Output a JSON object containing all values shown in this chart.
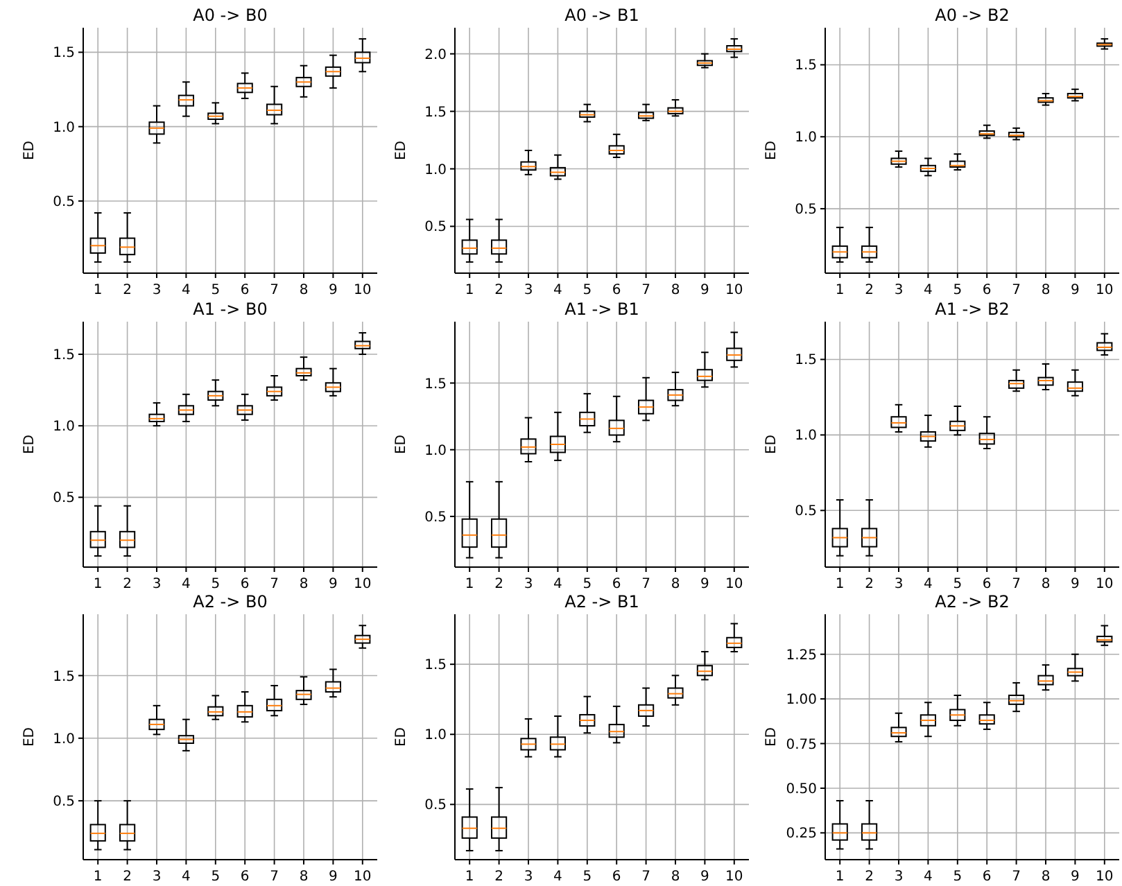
{
  "chart_data": [
    {
      "type": "box",
      "title": "A0 -> B0",
      "ylabel": "ED",
      "categories": [
        "1",
        "2",
        "3",
        "4",
        "5",
        "6",
        "7",
        "8",
        "9",
        "10"
      ],
      "ylim": [
        0.015,
        1.665
      ],
      "yticks": [
        {
          "value": 0.5,
          "label": "0.5"
        },
        {
          "value": 1,
          "label": "1.0"
        },
        {
          "value": 1.5,
          "label": "1.5"
        }
      ],
      "grid": true,
      "series": [
        {
          "color": "#000000",
          "boxes": [
            {
              "low": 0.09,
              "q1": 0.15,
              "median": 0.2,
              "q3": 0.25,
              "high": 0.42
            },
            {
              "low": 0.09,
              "q1": 0.14,
              "median": 0.19,
              "q3": 0.25,
              "high": 0.42
            },
            {
              "low": 0.89,
              "q1": 0.95,
              "median": 0.99,
              "q3": 1.03,
              "high": 1.14
            },
            {
              "low": 1.07,
              "q1": 1.14,
              "median": 1.18,
              "q3": 1.21,
              "high": 1.3
            },
            {
              "low": 1.02,
              "q1": 1.05,
              "median": 1.07,
              "q3": 1.09,
              "high": 1.16
            },
            {
              "low": 1.19,
              "q1": 1.23,
              "median": 1.26,
              "q3": 1.29,
              "high": 1.36
            },
            {
              "low": 1.02,
              "q1": 1.08,
              "median": 1.11,
              "q3": 1.15,
              "high": 1.27
            },
            {
              "low": 1.2,
              "q1": 1.27,
              "median": 1.3,
              "q3": 1.33,
              "high": 1.41
            },
            {
              "low": 1.26,
              "q1": 1.34,
              "median": 1.37,
              "q3": 1.4,
              "high": 1.48
            },
            {
              "low": 1.37,
              "q1": 1.43,
              "median": 1.46,
              "q3": 1.5,
              "high": 1.59
            }
          ]
        }
      ]
    },
    {
      "type": "box",
      "title": "A0 -> B1",
      "ylabel": "ED",
      "categories": [
        "1",
        "2",
        "3",
        "4",
        "5",
        "6",
        "7",
        "8",
        "9",
        "10"
      ],
      "ylim": [
        0.093,
        2.227
      ],
      "yticks": [
        {
          "value": 0.5,
          "label": "0.5"
        },
        {
          "value": 1,
          "label": "1.0"
        },
        {
          "value": 1.5,
          "label": "1.5"
        },
        {
          "value": 2,
          "label": "2.0"
        }
      ],
      "grid": true,
      "series": [
        {
          "color": "#000000",
          "boxes": [
            {
              "low": 0.19,
              "q1": 0.26,
              "median": 0.31,
              "q3": 0.38,
              "high": 0.56
            },
            {
              "low": 0.19,
              "q1": 0.26,
              "median": 0.31,
              "q3": 0.38,
              "high": 0.56
            },
            {
              "low": 0.95,
              "q1": 0.99,
              "median": 1.02,
              "q3": 1.06,
              "high": 1.16
            },
            {
              "low": 0.91,
              "q1": 0.94,
              "median": 0.97,
              "q3": 1.01,
              "high": 1.12
            },
            {
              "low": 1.41,
              "q1": 1.45,
              "median": 1.47,
              "q3": 1.5,
              "high": 1.56
            },
            {
              "low": 1.1,
              "q1": 1.13,
              "median": 1.16,
              "q3": 1.2,
              "high": 1.3
            },
            {
              "low": 1.42,
              "q1": 1.44,
              "median": 1.46,
              "q3": 1.49,
              "high": 1.56
            },
            {
              "low": 1.46,
              "q1": 1.48,
              "median": 1.5,
              "q3": 1.53,
              "high": 1.6
            },
            {
              "low": 1.88,
              "q1": 1.9,
              "median": 1.92,
              "q3": 1.94,
              "high": 2.0
            },
            {
              "low": 1.97,
              "q1": 2.02,
              "median": 2.04,
              "q3": 2.07,
              "high": 2.13
            }
          ]
        }
      ]
    },
    {
      "type": "box",
      "title": "A0 -> B2",
      "ylabel": "ED",
      "categories": [
        "1",
        "2",
        "3",
        "4",
        "5",
        "6",
        "7",
        "8",
        "9",
        "10"
      ],
      "ylim": [
        0.0525,
        1.7575
      ],
      "yticks": [
        {
          "value": 0.5,
          "label": "0.5"
        },
        {
          "value": 1,
          "label": "1.0"
        },
        {
          "value": 1.5,
          "label": "1.5"
        }
      ],
      "grid": true,
      "series": [
        {
          "color": "#000000",
          "boxes": [
            {
              "low": 0.13,
              "q1": 0.16,
              "median": 0.2,
              "q3": 0.24,
              "high": 0.37
            },
            {
              "low": 0.13,
              "q1": 0.16,
              "median": 0.2,
              "q3": 0.24,
              "high": 0.37
            },
            {
              "low": 0.79,
              "q1": 0.81,
              "median": 0.83,
              "q3": 0.85,
              "high": 0.9
            },
            {
              "low": 0.73,
              "q1": 0.76,
              "median": 0.78,
              "q3": 0.8,
              "high": 0.85
            },
            {
              "low": 0.77,
              "q1": 0.79,
              "median": 0.8,
              "q3": 0.83,
              "high": 0.88
            },
            {
              "low": 0.99,
              "q1": 1.01,
              "median": 1.02,
              "q3": 1.04,
              "high": 1.08
            },
            {
              "low": 0.98,
              "q1": 1.0,
              "median": 1.01,
              "q3": 1.03,
              "high": 1.06
            },
            {
              "low": 1.22,
              "q1": 1.24,
              "median": 1.25,
              "q3": 1.27,
              "high": 1.3
            },
            {
              "low": 1.25,
              "q1": 1.27,
              "median": 1.28,
              "q3": 1.3,
              "high": 1.33
            },
            {
              "low": 1.61,
              "q1": 1.63,
              "median": 1.64,
              "q3": 1.65,
              "high": 1.68
            }
          ]
        }
      ]
    },
    {
      "type": "box",
      "title": "A1 -> B0",
      "ylabel": "ED",
      "categories": [
        "1",
        "2",
        "3",
        "4",
        "5",
        "6",
        "7",
        "8",
        "9",
        "10"
      ],
      "ylim": [
        0.012,
        1.728
      ],
      "yticks": [
        {
          "value": 0.5,
          "label": "0.5"
        },
        {
          "value": 1,
          "label": "1.0"
        },
        {
          "value": 1.5,
          "label": "1.5"
        }
      ],
      "grid": true,
      "series": [
        {
          "color": "#000000",
          "boxes": [
            {
              "low": 0.09,
              "q1": 0.15,
              "median": 0.2,
              "q3": 0.26,
              "high": 0.44
            },
            {
              "low": 0.09,
              "q1": 0.15,
              "median": 0.2,
              "q3": 0.26,
              "high": 0.44
            },
            {
              "low": 1.0,
              "q1": 1.03,
              "median": 1.05,
              "q3": 1.08,
              "high": 1.16
            },
            {
              "low": 1.03,
              "q1": 1.08,
              "median": 1.11,
              "q3": 1.14,
              "high": 1.22
            },
            {
              "low": 1.14,
              "q1": 1.18,
              "median": 1.21,
              "q3": 1.24,
              "high": 1.32
            },
            {
              "low": 1.04,
              "q1": 1.08,
              "median": 1.11,
              "q3": 1.14,
              "high": 1.22
            },
            {
              "low": 1.18,
              "q1": 1.21,
              "median": 1.24,
              "q3": 1.27,
              "high": 1.35
            },
            {
              "low": 1.32,
              "q1": 1.35,
              "median": 1.37,
              "q3": 1.4,
              "high": 1.48
            },
            {
              "low": 1.21,
              "q1": 1.24,
              "median": 1.27,
              "q3": 1.3,
              "high": 1.4
            },
            {
              "low": 1.5,
              "q1": 1.54,
              "median": 1.56,
              "q3": 1.59,
              "high": 1.65
            }
          ]
        }
      ]
    },
    {
      "type": "box",
      "title": "A1 -> B1",
      "ylabel": "ED",
      "categories": [
        "1",
        "2",
        "3",
        "4",
        "5",
        "6",
        "7",
        "8",
        "9",
        "10"
      ],
      "ylim": [
        0.12,
        1.96
      ],
      "yticks": [
        {
          "value": 0.5,
          "label": "0.5"
        },
        {
          "value": 1,
          "label": "1.0"
        },
        {
          "value": 1.5,
          "label": "1.5"
        }
      ],
      "grid": true,
      "series": [
        {
          "color": "#000000",
          "boxes": [
            {
              "low": 0.19,
              "q1": 0.27,
              "median": 0.36,
              "q3": 0.48,
              "high": 0.76
            },
            {
              "low": 0.19,
              "q1": 0.27,
              "median": 0.36,
              "q3": 0.48,
              "high": 0.76
            },
            {
              "low": 0.91,
              "q1": 0.97,
              "median": 1.02,
              "q3": 1.08,
              "high": 1.24
            },
            {
              "low": 0.92,
              "q1": 0.98,
              "median": 1.04,
              "q3": 1.1,
              "high": 1.28
            },
            {
              "low": 1.13,
              "q1": 1.18,
              "median": 1.23,
              "q3": 1.28,
              "high": 1.42
            },
            {
              "low": 1.06,
              "q1": 1.11,
              "median": 1.16,
              "q3": 1.22,
              "high": 1.4
            },
            {
              "low": 1.22,
              "q1": 1.27,
              "median": 1.32,
              "q3": 1.37,
              "high": 1.54
            },
            {
              "low": 1.33,
              "q1": 1.37,
              "median": 1.41,
              "q3": 1.45,
              "high": 1.58
            },
            {
              "low": 1.47,
              "q1": 1.52,
              "median": 1.55,
              "q3": 1.6,
              "high": 1.73
            },
            {
              "low": 1.62,
              "q1": 1.67,
              "median": 1.71,
              "q3": 1.76,
              "high": 1.88
            }
          ]
        }
      ]
    },
    {
      "type": "box",
      "title": "A1 -> B2",
      "ylabel": "ED",
      "categories": [
        "1",
        "2",
        "3",
        "4",
        "5",
        "6",
        "7",
        "8",
        "9",
        "10"
      ],
      "ylim": [
        0.125,
        1.75
      ],
      "yticks": [
        {
          "value": 0.5,
          "label": "0.5"
        },
        {
          "value": 1,
          "label": "1.0"
        },
        {
          "value": 1.5,
          "label": "1.5"
        }
      ],
      "grid": true,
      "series": [
        {
          "color": "#000000",
          "boxes": [
            {
              "low": 0.2,
              "q1": 0.26,
              "median": 0.32,
              "q3": 0.38,
              "high": 0.57
            },
            {
              "low": 0.2,
              "q1": 0.26,
              "median": 0.32,
              "q3": 0.38,
              "high": 0.57
            },
            {
              "low": 1.02,
              "q1": 1.05,
              "median": 1.08,
              "q3": 1.12,
              "high": 1.2
            },
            {
              "low": 0.92,
              "q1": 0.96,
              "median": 0.99,
              "q3": 1.02,
              "high": 1.13
            },
            {
              "low": 1.0,
              "q1": 1.03,
              "median": 1.06,
              "q3": 1.09,
              "high": 1.19
            },
            {
              "low": 0.91,
              "q1": 0.94,
              "median": 0.97,
              "q3": 1.01,
              "high": 1.12
            },
            {
              "low": 1.29,
              "q1": 1.31,
              "median": 1.34,
              "q3": 1.36,
              "high": 1.43
            },
            {
              "low": 1.3,
              "q1": 1.33,
              "median": 1.36,
              "q3": 1.38,
              "high": 1.47
            },
            {
              "low": 1.26,
              "q1": 1.29,
              "median": 1.31,
              "q3": 1.35,
              "high": 1.43
            },
            {
              "low": 1.53,
              "q1": 1.56,
              "median": 1.58,
              "q3": 1.61,
              "high": 1.67
            }
          ]
        }
      ]
    },
    {
      "type": "box",
      "title": "A2 -> B0",
      "ylabel": "ED",
      "categories": [
        "1",
        "2",
        "3",
        "4",
        "5",
        "6",
        "7",
        "8",
        "9",
        "10"
      ],
      "ylim": [
        0.03,
        1.99
      ],
      "yticks": [
        {
          "value": 0.5,
          "label": "0.5"
        },
        {
          "value": 1,
          "label": "1.0"
        },
        {
          "value": 1.5,
          "label": "1.5"
        }
      ],
      "grid": true,
      "series": [
        {
          "color": "#000000",
          "boxes": [
            {
              "low": 0.11,
              "q1": 0.18,
              "median": 0.24,
              "q3": 0.31,
              "high": 0.5
            },
            {
              "low": 0.11,
              "q1": 0.18,
              "median": 0.24,
              "q3": 0.31,
              "high": 0.5
            },
            {
              "low": 1.03,
              "q1": 1.07,
              "median": 1.11,
              "q3": 1.15,
              "high": 1.26
            },
            {
              "low": 0.9,
              "q1": 0.96,
              "median": 0.99,
              "q3": 1.02,
              "high": 1.15
            },
            {
              "low": 1.15,
              "q1": 1.18,
              "median": 1.21,
              "q3": 1.25,
              "high": 1.34
            },
            {
              "low": 1.13,
              "q1": 1.17,
              "median": 1.21,
              "q3": 1.26,
              "high": 1.37
            },
            {
              "low": 1.18,
              "q1": 1.22,
              "median": 1.26,
              "q3": 1.31,
              "high": 1.42
            },
            {
              "low": 1.27,
              "q1": 1.31,
              "median": 1.35,
              "q3": 1.38,
              "high": 1.49
            },
            {
              "low": 1.33,
              "q1": 1.37,
              "median": 1.4,
              "q3": 1.45,
              "high": 1.55
            },
            {
              "low": 1.72,
              "q1": 1.76,
              "median": 1.79,
              "q3": 1.82,
              "high": 1.9
            }
          ]
        }
      ]
    },
    {
      "type": "box",
      "title": "A2 -> B1",
      "ylabel": "ED",
      "categories": [
        "1",
        "2",
        "3",
        "4",
        "5",
        "6",
        "7",
        "8",
        "9",
        "10"
      ],
      "ylim": [
        0.106,
        1.857
      ],
      "yticks": [
        {
          "value": 0.5,
          "label": "0.5"
        },
        {
          "value": 1,
          "label": "1.0"
        },
        {
          "value": 1.5,
          "label": "1.5"
        }
      ],
      "grid": true,
      "series": [
        {
          "color": "#000000",
          "boxes": [
            {
              "low": 0.17,
              "q1": 0.26,
              "median": 0.33,
              "q3": 0.41,
              "high": 0.61
            },
            {
              "low": 0.17,
              "q1": 0.26,
              "median": 0.33,
              "q3": 0.41,
              "high": 0.62
            },
            {
              "low": 0.84,
              "q1": 0.89,
              "median": 0.93,
              "q3": 0.97,
              "high": 1.11
            },
            {
              "low": 0.84,
              "q1": 0.89,
              "median": 0.93,
              "q3": 0.98,
              "high": 1.13
            },
            {
              "low": 1.01,
              "q1": 1.06,
              "median": 1.1,
              "q3": 1.14,
              "high": 1.27
            },
            {
              "low": 0.94,
              "q1": 0.98,
              "median": 1.02,
              "q3": 1.07,
              "high": 1.2
            },
            {
              "low": 1.06,
              "q1": 1.13,
              "median": 1.17,
              "q3": 1.21,
              "high": 1.33
            },
            {
              "low": 1.21,
              "q1": 1.26,
              "median": 1.29,
              "q3": 1.33,
              "high": 1.42
            },
            {
              "low": 1.39,
              "q1": 1.42,
              "median": 1.45,
              "q3": 1.49,
              "high": 1.59
            },
            {
              "low": 1.59,
              "q1": 1.62,
              "median": 1.65,
              "q3": 1.69,
              "high": 1.79
            }
          ]
        }
      ]
    },
    {
      "type": "box",
      "title": "A2 -> B2",
      "ylabel": "ED",
      "categories": [
        "1",
        "2",
        "3",
        "4",
        "5",
        "6",
        "7",
        "8",
        "9",
        "10"
      ],
      "ylim": [
        0.1,
        1.474
      ],
      "yticks": [
        {
          "value": 0.25,
          "label": "0.25"
        },
        {
          "value": 0.5,
          "label": "0.50"
        },
        {
          "value": 0.75,
          "label": "0.75"
        },
        {
          "value": 1,
          "label": "1.00"
        },
        {
          "value": 1.25,
          "label": "1.25"
        }
      ],
      "grid": true,
      "series": [
        {
          "color": "#000000",
          "boxes": [
            {
              "low": 0.16,
              "q1": 0.21,
              "median": 0.25,
              "q3": 0.3,
              "high": 0.43
            },
            {
              "low": 0.16,
              "q1": 0.21,
              "median": 0.25,
              "q3": 0.3,
              "high": 0.43
            },
            {
              "low": 0.76,
              "q1": 0.79,
              "median": 0.81,
              "q3": 0.84,
              "high": 0.92
            },
            {
              "low": 0.79,
              "q1": 0.85,
              "median": 0.88,
              "q3": 0.91,
              "high": 0.98
            },
            {
              "low": 0.85,
              "q1": 0.88,
              "median": 0.91,
              "q3": 0.94,
              "high": 1.02
            },
            {
              "low": 0.83,
              "q1": 0.86,
              "median": 0.88,
              "q3": 0.91,
              "high": 0.98
            },
            {
              "low": 0.93,
              "q1": 0.97,
              "median": 0.99,
              "q3": 1.02,
              "high": 1.09
            },
            {
              "low": 1.05,
              "q1": 1.08,
              "median": 1.1,
              "q3": 1.13,
              "high": 1.19
            },
            {
              "low": 1.1,
              "q1": 1.13,
              "median": 1.15,
              "q3": 1.17,
              "high": 1.25
            },
            {
              "low": 1.3,
              "q1": 1.32,
              "median": 1.33,
              "q3": 1.35,
              "high": 1.41
            }
          ]
        }
      ]
    }
  ]
}
